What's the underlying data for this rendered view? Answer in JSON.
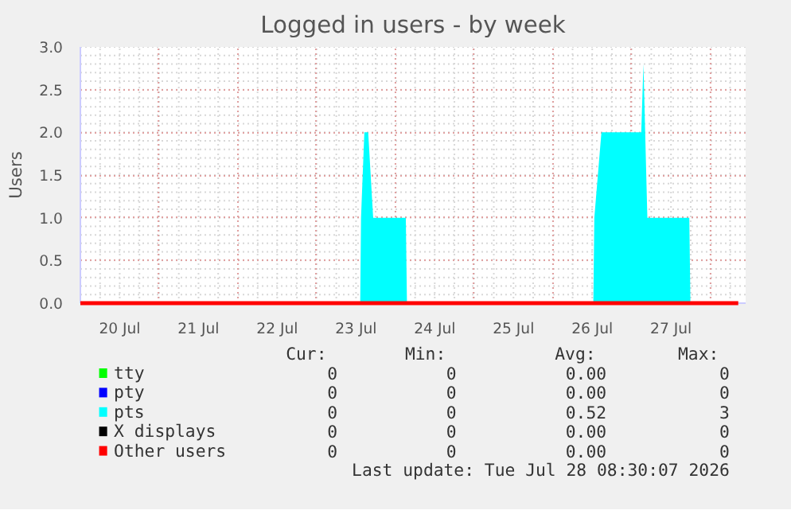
{
  "chart_data": {
    "type": "area",
    "title": "Logged in users - by week",
    "ylabel": "Users",
    "xlim": [
      "2026-07-20T00:00",
      "2026-07-28T10:45"
    ],
    "ylim": [
      0,
      3
    ],
    "yticks": [
      {
        "value": 0,
        "label": "0.0"
      },
      {
        "value": 0.5,
        "label": "0.5"
      },
      {
        "value": 1,
        "label": "1.0"
      },
      {
        "value": 1.5,
        "label": "1.5"
      },
      {
        "value": 2,
        "label": "2.0"
      },
      {
        "value": 2.5,
        "label": "2.5"
      },
      {
        "value": 3,
        "label": "3.0"
      }
    ],
    "xticks": [
      {
        "value": "2026-07-20T12:00",
        "label": "20 Jul"
      },
      {
        "value": "2026-07-21T12:00",
        "label": "21 Jul"
      },
      {
        "value": "2026-07-22T12:00",
        "label": "22 Jul"
      },
      {
        "value": "2026-07-23T12:00",
        "label": "23 Jul"
      },
      {
        "value": "2026-07-24T12:00",
        "label": "24 Jul"
      },
      {
        "value": "2026-07-25T12:00",
        "label": "25 Jul"
      },
      {
        "value": "2026-07-26T12:00",
        "label": "26 Jul"
      },
      {
        "value": "2026-07-27T12:00",
        "label": "27 Jul"
      }
    ],
    "grid": true,
    "legend": "bottom",
    "series": [
      {
        "name": "tty",
        "color": "#00ff00",
        "values": [
          null
        ]
      },
      {
        "name": "pty",
        "color": "#0000ff",
        "values": [
          null
        ]
      },
      {
        "name": "pts",
        "color": "#00ffff",
        "x": [
          "2026-07-20T00:00",
          "2026-07-23T13:17",
          "2026-07-23T13:32",
          "2026-07-23T14:33",
          "2026-07-23T15:43",
          "2026-07-23T17:14",
          "2026-07-24T03:11",
          "2026-07-24T03:32",
          "2026-07-26T12:20",
          "2026-07-26T12:38",
          "2026-07-26T14:48",
          "2026-07-27T02:56",
          "2026-07-27T03:36",
          "2026-07-27T04:48",
          "2026-07-27T17:35",
          "2026-07-27T17:55",
          "2026-07-28T08:30"
        ],
        "values": [
          0,
          0,
          1,
          2,
          2,
          1,
          1,
          0,
          0,
          1,
          2,
          2,
          2.8,
          1,
          1,
          0,
          0
        ]
      },
      {
        "name": "X displays",
        "color": "#000000",
        "values": [
          null
        ]
      },
      {
        "name": "Other users",
        "color": "#ff0000",
        "type": "line",
        "x": [
          "2026-07-20T00:00",
          "2026-07-28T08:30"
        ],
        "values": [
          0,
          0
        ]
      }
    ],
    "annotations": [
      "Cur:",
      "Min:",
      "Avg:",
      "Max:",
      "0",
      "0",
      "0.00",
      "0",
      "0",
      "0",
      "0.00",
      "0",
      "0",
      "0",
      "0.52",
      "3",
      "0",
      "0",
      "0.00",
      "0",
      "0",
      "0",
      "0.00",
      "0",
      "Last update: Tue Jul 28 08:30:07 2026"
    ]
  }
}
